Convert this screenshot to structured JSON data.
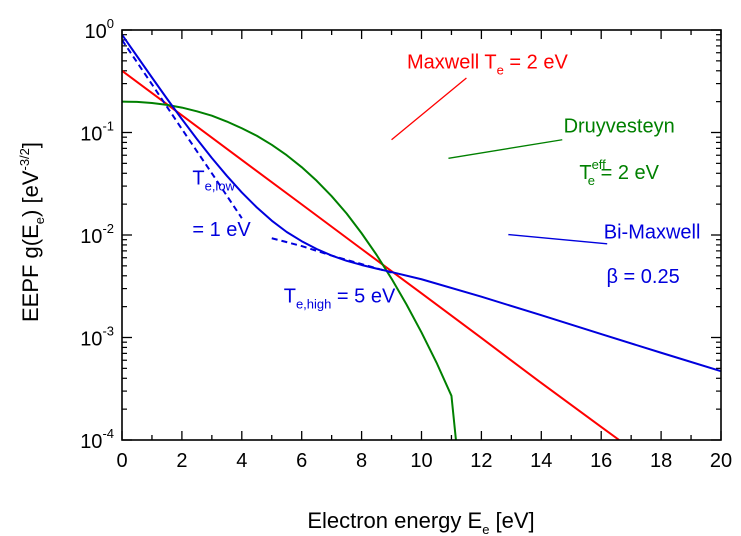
{
  "chart_data": {
    "type": "line",
    "xlabel": {
      "text": "Electron energy E",
      "sub": "e",
      "tail": " [eV]"
    },
    "ylabel": {
      "text": "EEPF g(E",
      "sub": "e",
      "mid": ") [eV",
      "sup": "-3/2",
      "tail": "]"
    },
    "xlim": [
      0,
      20
    ],
    "ylim": [
      0.0001,
      1
    ],
    "yscale": "log",
    "x_ticks": [
      {
        "value": 0,
        "label": "0"
      },
      {
        "value": 2,
        "label": "2"
      },
      {
        "value": 4,
        "label": "4"
      },
      {
        "value": 6,
        "label": "6"
      },
      {
        "value": 8,
        "label": "8"
      },
      {
        "value": 10,
        "label": "10"
      },
      {
        "value": 12,
        "label": "12"
      },
      {
        "value": 14,
        "label": "14"
      },
      {
        "value": 16,
        "label": "16"
      },
      {
        "value": 18,
        "label": "18"
      },
      {
        "value": 20,
        "label": "20"
      }
    ],
    "y_ticks": [
      {
        "value": 1,
        "base": "10",
        "exp": "0"
      },
      {
        "value": 0.1,
        "base": "10",
        "exp": "-1"
      },
      {
        "value": 0.01,
        "base": "10",
        "exp": "-2"
      },
      {
        "value": 0.001,
        "base": "10",
        "exp": "-3"
      },
      {
        "value": 0.0001,
        "base": "10",
        "exp": "-4"
      }
    ],
    "grid": false,
    "series": [
      {
        "color": "#ff0000",
        "dash": "",
        "x": [
          0,
          2,
          4,
          6,
          8,
          10,
          12,
          14,
          16,
          16.6
        ],
        "y": [
          0.4,
          0.147,
          0.054,
          0.0199,
          0.0073,
          0.0027,
          0.00099,
          0.00036,
          0.000134,
          0.0001
        ]
      },
      {
        "color": "#008000",
        "dash": "",
        "x": [
          0,
          0.5,
          1,
          1.5,
          2,
          2.5,
          3,
          3.5,
          4,
          4.5,
          5,
          5.5,
          6,
          6.5,
          7,
          7.5,
          8,
          8.5,
          9,
          9.5,
          10,
          10.5,
          11,
          11.15
        ],
        "y": [
          0.2,
          0.199,
          0.194,
          0.186,
          0.175,
          0.161,
          0.146,
          0.128,
          0.11,
          0.093,
          0.0758,
          0.06,
          0.0459,
          0.0338,
          0.0239,
          0.0162,
          0.0104,
          0.0064,
          0.00375,
          0.0021,
          0.00112,
          0.00057,
          0.00027,
          0.0001
        ]
      },
      {
        "color": "#0000dd",
        "dash": "",
        "x": [
          0,
          0.5,
          1,
          1.5,
          2,
          2.5,
          3,
          3.5,
          4,
          4.5,
          5,
          5.5,
          6,
          6.5,
          7,
          7.5,
          8,
          8.5,
          9,
          10,
          12,
          14,
          16,
          18,
          20
        ],
        "y": [
          0.9,
          0.556,
          0.344,
          0.214,
          0.135,
          0.0865,
          0.0564,
          0.0378,
          0.026,
          0.0186,
          0.0138,
          0.0107,
          0.0087,
          0.0073,
          0.0063,
          0.0056,
          0.0051,
          0.0047,
          0.00435,
          0.0037,
          0.0025,
          0.00165,
          0.00108,
          0.00071,
          0.00047
        ]
      },
      {
        "color": "#0000dd",
        "dash": "6,4",
        "x": [
          0,
          1,
          2,
          3,
          4
        ],
        "y": [
          0.8,
          0.295,
          0.108,
          0.04,
          0.0146
        ]
      },
      {
        "color": "#0000dd",
        "dash": "6,4",
        "x": [
          5,
          6,
          7,
          8,
          9
        ],
        "y": [
          0.0093,
          0.0078,
          0.0063,
          0.0052,
          0.0043
        ]
      }
    ],
    "annotations": [
      {
        "color": "#ff0000",
        "text": "Maxwell T",
        "sub": "e",
        "tail": " = 2 eV",
        "x": 12.2,
        "y": 0.42,
        "anchor": "middle",
        "pointer_from": [
          11.5,
          0.34
        ],
        "pointer_to": [
          9.0,
          0.085
        ]
      },
      {
        "color": "#008000",
        "text": "Druyvesteyn",
        "sub": "",
        "tail": "",
        "x": 16.6,
        "y": 0.1,
        "anchor": "middle",
        "pointer_from": [
          14.7,
          0.085
        ],
        "pointer_to": [
          10.9,
          0.056
        ]
      },
      {
        "color": "#008000",
        "text": "T",
        "sub": "e",
        "sup": "eff",
        "tail": " = 2 eV",
        "x": 16.6,
        "y": 0.035,
        "anchor": "middle"
      },
      {
        "color": "#0000dd",
        "text": "Bi-Maxwell",
        "sub": "",
        "tail": "",
        "x": 17.7,
        "y": 0.0092,
        "anchor": "middle",
        "pointer_from": [
          16.2,
          0.0082
        ],
        "pointer_to": [
          12.9,
          0.0101
        ]
      },
      {
        "color": "#0000dd",
        "text": "β = 0.25",
        "sub": "",
        "tail": "",
        "x": 17.4,
        "y": 0.0034,
        "anchor": "middle"
      },
      {
        "color": "#0000dd",
        "text": "T",
        "sub": "e,low",
        "tail": "",
        "x": 2.35,
        "y": 0.031,
        "anchor": "start"
      },
      {
        "color": "#0000dd",
        "text": "= 1 eV",
        "sub": "",
        "tail": "",
        "x": 2.35,
        "y": 0.0098,
        "anchor": "start"
      },
      {
        "color": "#0000dd",
        "text": "T",
        "sub": "e,high",
        "tail": " = 5 eV",
        "x": 5.4,
        "y": 0.0022,
        "anchor": "start"
      }
    ]
  }
}
